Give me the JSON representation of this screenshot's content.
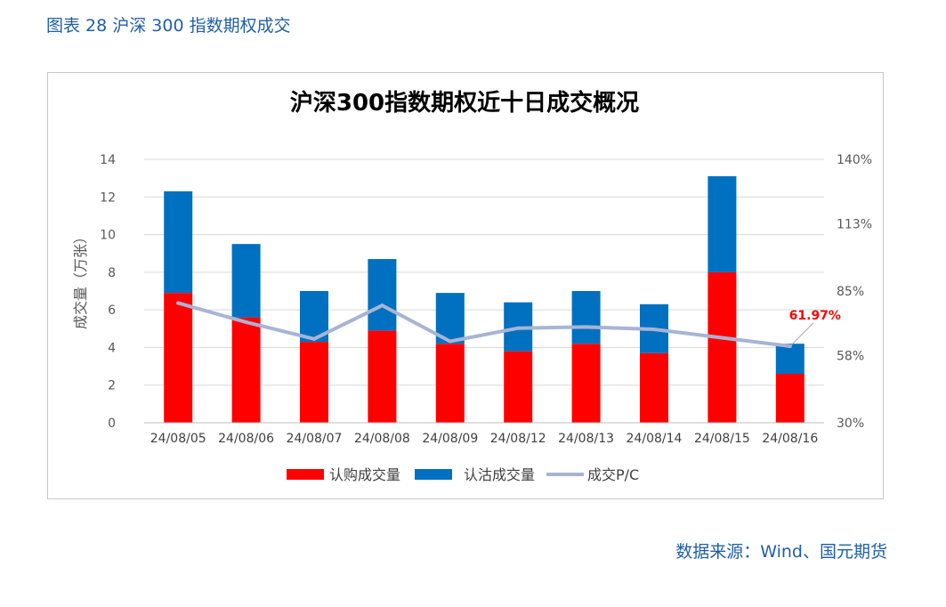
{
  "caption": "图表 28 沪深 300 指数期权成交",
  "source": "数据来源：Wind、国元期货",
  "colors": {
    "call": "#ff0000",
    "put": "#0070c0",
    "pc_line": "#a8b4d4",
    "annotation": "#ff0000",
    "caption": "#1f5fa8"
  },
  "chart_data": {
    "type": "bar",
    "stacked": true,
    "title": "沪深300指数期权近十日成交概况",
    "ylabel": "成交量（万张）",
    "ylim": [
      0,
      14
    ],
    "y_ticks": [
      "0",
      "2",
      "4",
      "6",
      "8",
      "10",
      "12",
      "14"
    ],
    "y2lim": [
      30,
      140
    ],
    "y2_ticks": [
      "30%",
      "58%",
      "85%",
      "113%",
      "140%"
    ],
    "categories": [
      "24/08/05",
      "24/08/06",
      "24/08/07",
      "24/08/08",
      "24/08/09",
      "24/08/12",
      "24/08/13",
      "24/08/14",
      "24/08/15",
      "24/08/16"
    ],
    "series": [
      {
        "name": "认购成交量",
        "kind": "bar",
        "axis": "left",
        "values": [
          6.9,
          5.6,
          4.3,
          4.9,
          4.2,
          3.8,
          4.2,
          3.7,
          8.0,
          2.6
        ]
      },
      {
        "name": "认沽成交量",
        "kind": "bar",
        "axis": "left",
        "values": [
          5.4,
          3.9,
          2.7,
          3.8,
          2.7,
          2.6,
          2.8,
          2.6,
          5.1,
          1.6
        ]
      },
      {
        "name": "成交P/C",
        "kind": "line",
        "axis": "right",
        "values": [
          80.0,
          72.0,
          65.0,
          79.0,
          64.0,
          69.5,
          70.0,
          69.0,
          65.5,
          61.97
        ]
      }
    ],
    "annotation": {
      "text": "61.97%",
      "category": "24/08/16"
    },
    "legend_position": "bottom",
    "grid": true
  }
}
